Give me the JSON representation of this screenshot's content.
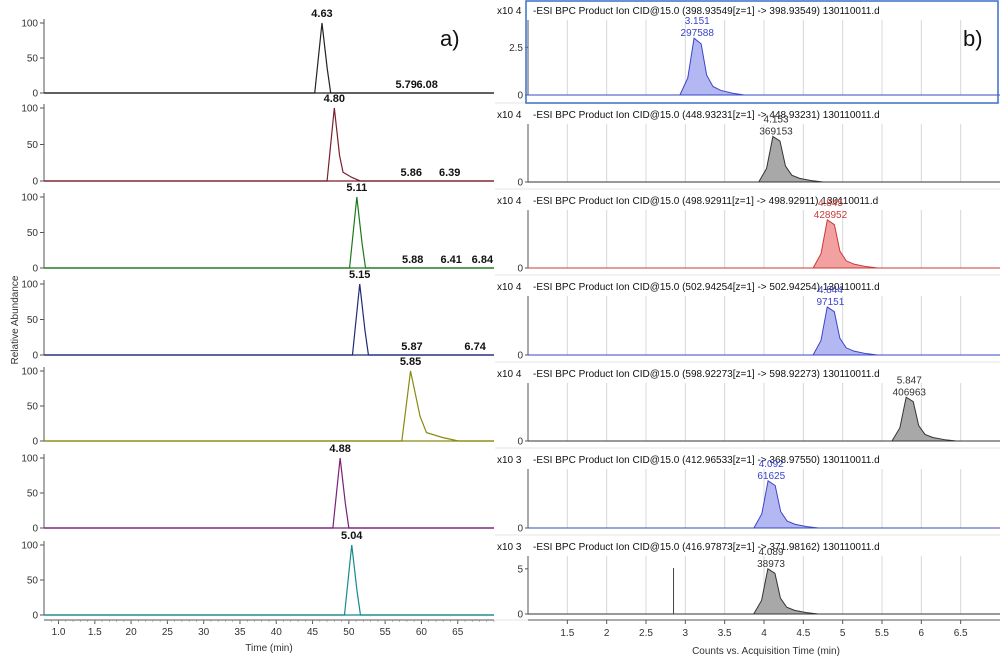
{
  "chart_data": [
    {
      "panel": "a)",
      "type": "line",
      "ylabel": "Relative Abundance",
      "xlabel": "Time (min)",
      "xlim": [
        0.8,
        7.0
      ],
      "ylim": [
        0,
        100
      ],
      "yticks": [
        0,
        50,
        100
      ],
      "xticks": [
        1.0,
        1.5,
        2.0,
        2.5,
        3.0,
        3.5,
        4.0,
        4.5,
        5.0,
        5.5,
        6.0,
        6.5
      ],
      "xtick_labels": [
        "1.0",
        "1.5",
        "20",
        "25",
        "30",
        "35",
        "40",
        "45",
        "50",
        "55",
        "60",
        "65"
      ],
      "series": [
        {
          "color": "#222222",
          "peak_rt": 4.63,
          "peak_label": "4.63",
          "minor_labels": [
            {
              "x": 5.79,
              "label": "5.79"
            },
            {
              "x": 6.08,
              "label": "6.08"
            }
          ]
        },
        {
          "color": "#7a1f2e",
          "peak_rt": 4.8,
          "peak_label": "4.80",
          "minor_labels": [
            {
              "x": 5.86,
              "label": "5.86"
            },
            {
              "x": 6.39,
              "label": "6.39"
            }
          ]
        },
        {
          "color": "#1a7a1a",
          "peak_rt": 5.11,
          "peak_label": "5.11",
          "minor_labels": [
            {
              "x": 5.88,
              "label": "5.88"
            },
            {
              "x": 6.41,
              "label": "6.41"
            },
            {
              "x": 6.84,
              "label": "6.84"
            }
          ]
        },
        {
          "color": "#1f2a7a",
          "peak_rt": 5.15,
          "peak_label": "5.15",
          "minor_labels": [
            {
              "x": 5.87,
              "label": "5.87"
            },
            {
              "x": 6.74,
              "label": "6.74"
            }
          ]
        },
        {
          "color": "#8a8a10",
          "peak_rt": 5.85,
          "peak_label": "5.85",
          "minor_labels": []
        },
        {
          "color": "#7a1f7a",
          "peak_rt": 4.88,
          "peak_label": "4.88",
          "minor_labels": []
        },
        {
          "color": "#178a8a",
          "peak_rt": 5.04,
          "peak_label": "5.04",
          "minor_labels": []
        }
      ]
    },
    {
      "panel": "b)",
      "type": "area",
      "xlabel": "Counts vs. Acquisition Time (min)",
      "xlim": [
        1.0,
        7.0
      ],
      "xticks": [
        1.5,
        2.0,
        2.5,
        3.0,
        3.5,
        4.0,
        4.5,
        5.0,
        5.5,
        6.0,
        6.5
      ],
      "xtick_labels": [
        "1.5",
        "2",
        "2.5",
        "3",
        "3.5",
        "4",
        "4.5",
        "5",
        "5.5",
        "6",
        "6.5"
      ],
      "series": [
        {
          "title": "-ESI BPC Product Ion CID@15.0 (398.93549[z=1] -> 398.93549) 130110011.d",
          "scale": "x10 4",
          "yticks": [
            0,
            2.5
          ],
          "ymax": 3.2,
          "peak_rt": 3.151,
          "peak_height": 2.98,
          "ann_rt": "3.151",
          "ann_area": "297588",
          "fill": "#b3b8f2",
          "stroke": "#3a44c8",
          "ann_color": "#3a44c8"
        },
        {
          "title": "-ESI BPC Product Ion CID@15.0 (448.93231[z=1] -> 448.93231) 130110011.d",
          "scale": "x10 4",
          "yticks": [
            0
          ],
          "ymax": 3.2,
          "peak_rt": 4.153,
          "peak_height": 2.6,
          "ann_rt": "4.153",
          "ann_area": "369153",
          "fill": "#a8a8a8",
          "stroke": "#333333",
          "ann_color": "#333333"
        },
        {
          "title": "-ESI BPC Product Ion CID@15.0 (498.92911[z=1] -> 498.92911) 130110011.d",
          "scale": "x10 4",
          "yticks": [
            0
          ],
          "ymax": 3.2,
          "peak_rt": 4.845,
          "peak_height": 2.75,
          "ann_rt": "4.845",
          "ann_area": "428952",
          "fill": "#f2a0a0",
          "stroke": "#c83a3a",
          "ann_color": "#c83a3a"
        },
        {
          "title": "-ESI BPC Product Ion CID@15.0 (502.94254[z=1] -> 502.94254) 130110011.d",
          "scale": "x10 4",
          "yticks": [
            0
          ],
          "ymax": 3.2,
          "peak_rt": 4.844,
          "peak_height": 2.7,
          "ann_rt": "4.844",
          "ann_area": "97151",
          "fill": "#b3b8f2",
          "stroke": "#3a44c8",
          "ann_color": "#3a44c8"
        },
        {
          "title": "-ESI BPC Product Ion CID@15.0 (598.92273[z=1] -> 598.92273) 130110011.d",
          "scale": "x10 4",
          "yticks": [
            0
          ],
          "ymax": 3.2,
          "peak_rt": 5.847,
          "peak_height": 2.5,
          "ann_rt": "5.847",
          "ann_area": "406963",
          "fill": "#a8a8a8",
          "stroke": "#333333",
          "ann_color": "#333333"
        },
        {
          "title": "-ESI BPC Product Ion CID@15.0 (412.96533[z=1] -> 368.97550) 130110011.d",
          "scale": "x10 3",
          "yticks": [
            0
          ],
          "ymax": 3.2,
          "peak_rt": 4.092,
          "peak_height": 2.65,
          "ann_rt": "4.092",
          "ann_area": "61625",
          "fill": "#b3b8f2",
          "stroke": "#3a44c8",
          "ann_color": "#3a44c8"
        },
        {
          "title": "-ESI BPC Product Ion CID@15.0 (416.97873[z=1] -> 371.98162) 130110011.d",
          "scale": "x10 3",
          "yticks": [
            0,
            5
          ],
          "ymax": 6.2,
          "peak_rt": 4.089,
          "peak_height": 5.0,
          "ann_rt": "4.089",
          "ann_area": "38973",
          "fill": "#a8a8a8",
          "stroke": "#333333",
          "ann_color": "#333333"
        }
      ]
    }
  ]
}
